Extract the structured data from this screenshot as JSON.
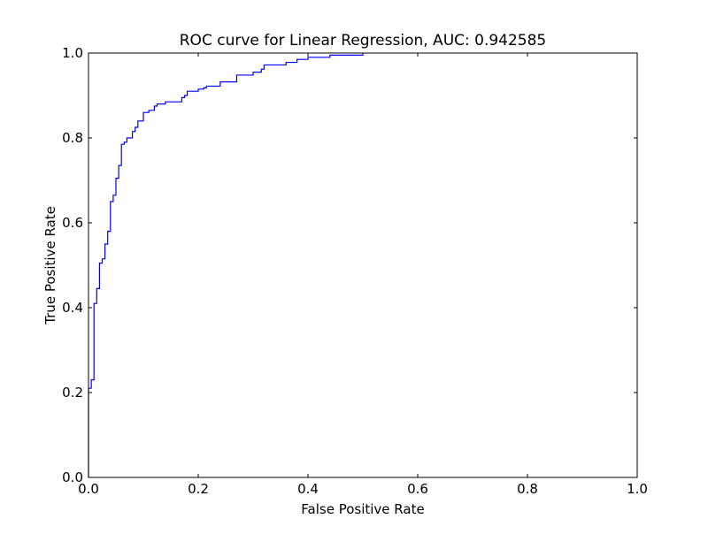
{
  "chart_data": {
    "type": "line",
    "title": "ROC curve for Linear Regression, AUC: 0.942585",
    "xlabel": "False Positive Rate",
    "ylabel": "True Positive Rate",
    "xlim": [
      0.0,
      1.0
    ],
    "ylim": [
      0.0,
      1.0
    ],
    "xticks": [
      "0.0",
      "0.2",
      "0.4",
      "0.6",
      "0.8",
      "1.0"
    ],
    "yticks": [
      "0.0",
      "0.2",
      "0.4",
      "0.6",
      "0.8",
      "1.0"
    ],
    "grid": false,
    "legend": "none",
    "series": [
      {
        "color": "#0000ff",
        "x": [
          0.0,
          0.0,
          0.005,
          0.005,
          0.01,
          0.01,
          0.015,
          0.015,
          0.02,
          0.02,
          0.025,
          0.025,
          0.03,
          0.03,
          0.035,
          0.035,
          0.04,
          0.04,
          0.045,
          0.045,
          0.05,
          0.05,
          0.055,
          0.055,
          0.06,
          0.06,
          0.065,
          0.065,
          0.07,
          0.07,
          0.08,
          0.08,
          0.085,
          0.085,
          0.09,
          0.09,
          0.1,
          0.1,
          0.11,
          0.11,
          0.12,
          0.12,
          0.125,
          0.125,
          0.14,
          0.14,
          0.17,
          0.17,
          0.175,
          0.175,
          0.18,
          0.18,
          0.2,
          0.2,
          0.21,
          0.21,
          0.215,
          0.215,
          0.24,
          0.24,
          0.27,
          0.27,
          0.3,
          0.3,
          0.315,
          0.315,
          0.32,
          0.32,
          0.36,
          0.36,
          0.38,
          0.38,
          0.4,
          0.4,
          0.44,
          0.44,
          0.5,
          0.5
        ],
        "y": [
          0.0,
          0.21,
          0.21,
          0.23,
          0.23,
          0.41,
          0.41,
          0.445,
          0.445,
          0.505,
          0.505,
          0.515,
          0.515,
          0.55,
          0.55,
          0.58,
          0.58,
          0.65,
          0.65,
          0.665,
          0.665,
          0.705,
          0.705,
          0.735,
          0.735,
          0.785,
          0.785,
          0.79,
          0.79,
          0.8,
          0.8,
          0.815,
          0.815,
          0.825,
          0.825,
          0.84,
          0.84,
          0.86,
          0.86,
          0.865,
          0.865,
          0.875,
          0.875,
          0.88,
          0.88,
          0.885,
          0.885,
          0.895,
          0.895,
          0.9,
          0.9,
          0.91,
          0.91,
          0.915,
          0.915,
          0.918,
          0.918,
          0.922,
          0.922,
          0.932,
          0.932,
          0.948,
          0.948,
          0.955,
          0.955,
          0.962,
          0.962,
          0.972,
          0.972,
          0.978,
          0.978,
          0.985,
          0.985,
          0.99,
          0.99,
          0.995,
          0.995,
          1.0
        ]
      }
    ]
  }
}
